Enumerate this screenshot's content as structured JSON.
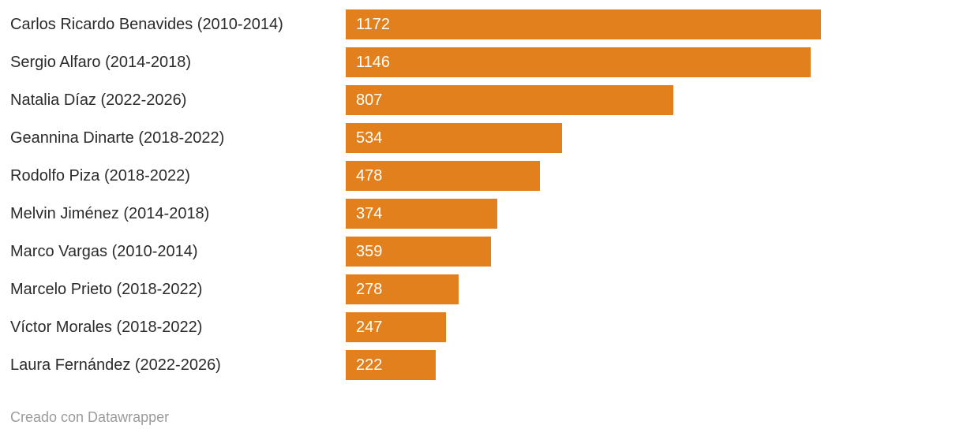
{
  "chart_data": {
    "type": "bar",
    "orientation": "horizontal",
    "title": "",
    "xlabel": "",
    "ylabel": "",
    "grid": false,
    "value_labels_inside_bars": true,
    "xlim": [
      0,
      1172
    ],
    "categories": [
      "Carlos Ricardo Benavides (2010-2014)",
      "Sergio Alfaro (2014-2018)",
      "Natalia Díaz (2022-2026)",
      "Geannina Dinarte (2018-2022)",
      "Rodolfo Piza (2018-2022)",
      "Melvin Jiménez (2014-2018)",
      "Marco Vargas (2010-2014)",
      "Marcelo Prieto (2018-2022)",
      "Víctor Morales (2018-2022)",
      "Laura Fernández (2022-2026)"
    ],
    "values": [
      1172,
      1146,
      807,
      534,
      478,
      374,
      359,
      278,
      247,
      222
    ]
  },
  "colors": {
    "bar": "#E2801E",
    "category_label_text": "#2b2b2b",
    "value_label_text": "#ffffff",
    "footer_text": "#9b9b9b",
    "background": "#ffffff"
  },
  "footer": {
    "attribution": "Creado con Datawrapper"
  }
}
